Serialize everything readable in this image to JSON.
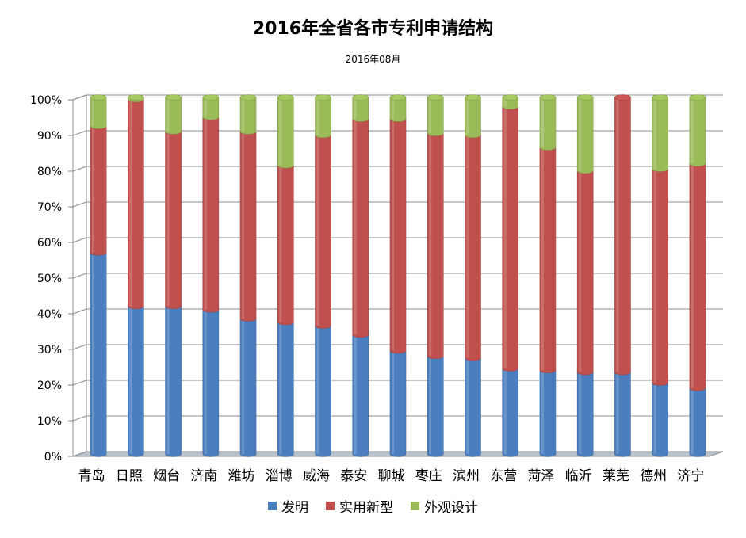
{
  "chart_data": {
    "type": "bar",
    "stacked": true,
    "percent": true,
    "title": "2016年全省各市专利申请结构",
    "subtitle": "2016年08月",
    "categories": [
      "青岛",
      "日照",
      "烟台",
      "济南",
      "潍坊",
      "淄博",
      "威海",
      "泰安",
      "聊城",
      "枣庄",
      "滨州",
      "东营",
      "菏泽",
      "临沂",
      "莱芜",
      "德州",
      "济宁"
    ],
    "series": [
      {
        "name": "发明",
        "color": "#4a7ebf",
        "values": [
          56.5,
          41.5,
          41.5,
          40.5,
          38,
          37,
          36,
          33.5,
          29,
          27.5,
          27,
          24,
          23.5,
          23,
          23,
          20,
          18.5
        ]
      },
      {
        "name": "实用新型",
        "color": "#c0504d",
        "values": [
          35.5,
          58,
          49,
          54,
          52.5,
          44,
          53.5,
          60.5,
          65,
          62.5,
          62.5,
          73.5,
          62.5,
          56.5,
          77,
          60,
          63
        ]
      },
      {
        "name": "外观设计",
        "color": "#9bbb59",
        "values": [
          8,
          0.5,
          9.5,
          5.5,
          9.5,
          19,
          10.5,
          6,
          6,
          10,
          10.5,
          2.5,
          14,
          20.5,
          0,
          20,
          18.5
        ]
      }
    ],
    "y_ticks": [
      "0%",
      "10%",
      "20%",
      "30%",
      "40%",
      "50%",
      "60%",
      "70%",
      "80%",
      "90%",
      "100%"
    ],
    "ylim": [
      0,
      100
    ],
    "grid": true,
    "legend_position": "bottom"
  }
}
